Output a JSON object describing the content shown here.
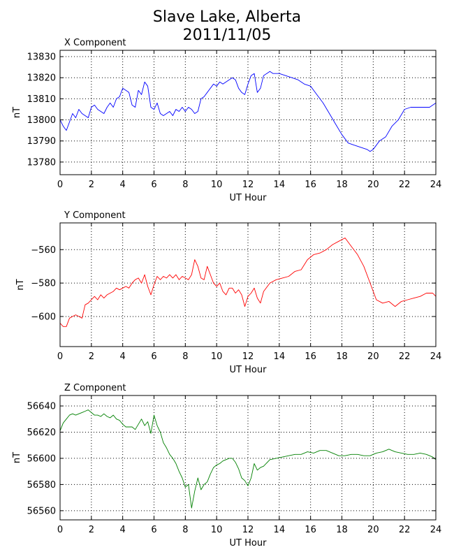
{
  "title": [
    "Slave Lake, Alberta",
    "2011/11/05"
  ],
  "colors": {
    "x": "#0000ff",
    "y": "#ff0000",
    "z": "#008000"
  },
  "chart_data": [
    {
      "type": "line",
      "title": "X Component",
      "xlabel": "UT Hour",
      "ylabel": "nT",
      "xlim": [
        0,
        24
      ],
      "ylim": [
        13774,
        13833
      ],
      "xticks": [
        0,
        2,
        4,
        6,
        8,
        10,
        12,
        14,
        16,
        18,
        20,
        22,
        24
      ],
      "yticks": [
        13780,
        13790,
        13800,
        13810,
        13820,
        13830
      ],
      "grid": true,
      "color": "#0000ff",
      "x": [
        0,
        0.2,
        0.4,
        0.6,
        0.8,
        1.0,
        1.2,
        1.4,
        1.6,
        1.8,
        2.0,
        2.2,
        2.4,
        2.6,
        2.8,
        3.0,
        3.2,
        3.4,
        3.6,
        3.8,
        4.0,
        4.2,
        4.4,
        4.6,
        4.8,
        5.0,
        5.2,
        5.4,
        5.6,
        5.8,
        6.0,
        6.2,
        6.4,
        6.6,
        6.8,
        7.0,
        7.2,
        7.4,
        7.6,
        7.8,
        8.0,
        8.2,
        8.4,
        8.6,
        8.8,
        9.0,
        9.2,
        9.4,
        9.6,
        9.8,
        10.0,
        10.2,
        10.4,
        10.6,
        10.8,
        11.0,
        11.2,
        11.4,
        11.6,
        11.8,
        12.0,
        12.2,
        12.4,
        12.6,
        12.8,
        13.0,
        13.2,
        13.4,
        13.6,
        13.8,
        14.0,
        14.4,
        14.8,
        15.2,
        15.6,
        16.0,
        16.4,
        16.8,
        17.2,
        17.6,
        18.0,
        18.4,
        18.8,
        19.2,
        19.6,
        19.8,
        20.0,
        20.2,
        20.4,
        20.8,
        21.2,
        21.6,
        22.0,
        22.4,
        22.8,
        23.2,
        23.6,
        24.0
      ],
      "y": [
        13800,
        13797,
        13795,
        13799,
        13803,
        13801,
        13805,
        13803,
        13802,
        13801,
        13806,
        13807,
        13805,
        13804,
        13803,
        13806,
        13808,
        13806,
        13810,
        13811,
        13815,
        13814,
        13813,
        13807,
        13806,
        13814,
        13812,
        13818,
        13816,
        13806,
        13805,
        13808,
        13803,
        13802,
        13803,
        13804,
        13802,
        13805,
        13804,
        13806,
        13804,
        13806,
        13805,
        13803,
        13804,
        13810,
        13811,
        13813,
        13815,
        13817,
        13816,
        13818,
        13817,
        13818,
        13819,
        13820,
        13819,
        13815,
        13813,
        13812,
        13817,
        13821,
        13822,
        13813,
        13815,
        13821,
        13822,
        13823,
        13822,
        13822,
        13822,
        13821,
        13820,
        13819,
        13817,
        13816,
        13812,
        13808,
        13803,
        13798,
        13793,
        13789,
        13788,
        13787,
        13786,
        13785,
        13786,
        13788,
        13790,
        13792,
        13797,
        13800,
        13805,
        13806,
        13806,
        13806,
        13806,
        13808
      ]
    },
    {
      "type": "line",
      "title": "Y Component",
      "xlabel": "UT Hour",
      "ylabel": "nT",
      "xlim": [
        0,
        24
      ],
      "ylim": [
        -618,
        -544
      ],
      "xticks": [
        0,
        2,
        4,
        6,
        8,
        10,
        12,
        14,
        16,
        18,
        20,
        22,
        24
      ],
      "yticks": [
        -600,
        -580,
        -560
      ],
      "grid": true,
      "color": "#ff0000",
      "x": [
        0,
        0.2,
        0.4,
        0.6,
        0.8,
        1.0,
        1.2,
        1.4,
        1.6,
        1.8,
        2.0,
        2.2,
        2.4,
        2.6,
        2.8,
        3.0,
        3.2,
        3.4,
        3.6,
        3.8,
        4.0,
        4.2,
        4.4,
        4.6,
        4.8,
        5.0,
        5.2,
        5.4,
        5.6,
        5.8,
        6.0,
        6.2,
        6.4,
        6.6,
        6.8,
        7.0,
        7.2,
        7.4,
        7.6,
        7.8,
        8.0,
        8.2,
        8.4,
        8.6,
        8.8,
        9.0,
        9.2,
        9.4,
        9.6,
        9.8,
        10.0,
        10.2,
        10.4,
        10.6,
        10.8,
        11.0,
        11.2,
        11.4,
        11.6,
        11.8,
        12.0,
        12.2,
        12.4,
        12.6,
        12.8,
        13.0,
        13.4,
        13.8,
        14.2,
        14.6,
        15.0,
        15.4,
        15.8,
        16.2,
        16.6,
        17.0,
        17.4,
        17.8,
        18.2,
        18.6,
        19.0,
        19.4,
        19.8,
        20.2,
        20.6,
        21.0,
        21.4,
        21.8,
        22.2,
        22.6,
        23.0,
        23.4,
        23.8,
        24.0
      ],
      "y": [
        -604,
        -606,
        -606,
        -601,
        -600,
        -599,
        -600,
        -601,
        -593,
        -592,
        -590,
        -588,
        -590,
        -587,
        -589,
        -587,
        -586,
        -585,
        -583,
        -584,
        -583,
        -582,
        -583,
        -580,
        -578,
        -577,
        -580,
        -575,
        -582,
        -587,
        -581,
        -576,
        -578,
        -576,
        -577,
        -575,
        -577,
        -575,
        -578,
        -576,
        -577,
        -578,
        -575,
        -566,
        -570,
        -577,
        -578,
        -570,
        -575,
        -580,
        -582,
        -580,
        -585,
        -587,
        -583,
        -583,
        -586,
        -584,
        -587,
        -594,
        -588,
        -586,
        -583,
        -589,
        -592,
        -585,
        -580,
        -578,
        -577,
        -576,
        -573,
        -572,
        -566,
        -563,
        -562,
        -560,
        -557,
        -555,
        -553,
        -558,
        -563,
        -570,
        -580,
        -590,
        -592,
        -591,
        -594,
        -591,
        -590,
        -589,
        -588,
        -586,
        -586,
        -588
      ]
    },
    {
      "type": "line",
      "title": "Z Component",
      "xlabel": "UT Hour",
      "ylabel": "nT",
      "xlim": [
        0,
        24
      ],
      "ylim": [
        56553,
        56648
      ],
      "xticks": [
        0,
        2,
        4,
        6,
        8,
        10,
        12,
        14,
        16,
        18,
        20,
        22,
        24
      ],
      "yticks": [
        56560,
        56580,
        56600,
        56620,
        56640
      ],
      "grid": true,
      "color": "#008000",
      "x": [
        0,
        0.2,
        0.4,
        0.6,
        0.8,
        1.0,
        1.2,
        1.4,
        1.6,
        1.8,
        2.0,
        2.2,
        2.4,
        2.6,
        2.8,
        3.0,
        3.2,
        3.4,
        3.6,
        3.8,
        4.0,
        4.2,
        4.4,
        4.6,
        4.8,
        5.0,
        5.2,
        5.4,
        5.6,
        5.8,
        6.0,
        6.2,
        6.4,
        6.6,
        6.8,
        7.0,
        7.2,
        7.4,
        7.6,
        7.8,
        8.0,
        8.2,
        8.4,
        8.6,
        8.8,
        9.0,
        9.2,
        9.4,
        9.6,
        9.8,
        10.0,
        10.2,
        10.4,
        10.6,
        10.8,
        11.0,
        11.2,
        11.4,
        11.6,
        11.8,
        12.0,
        12.2,
        12.4,
        12.6,
        12.8,
        13.0,
        13.4,
        13.8,
        14.2,
        14.6,
        15.0,
        15.4,
        15.8,
        16.2,
        16.6,
        17.0,
        17.4,
        17.8,
        18.2,
        18.6,
        19.0,
        19.4,
        19.8,
        20.2,
        20.6,
        21.0,
        21.4,
        21.8,
        22.2,
        22.6,
        23.0,
        23.4,
        23.8,
        24.0
      ],
      "y": [
        56621,
        56627,
        56630,
        56633,
        56634,
        56633,
        56634,
        56635,
        56636,
        56637,
        56635,
        56633,
        56633,
        56632,
        56634,
        56632,
        56631,
        56633,
        56630,
        56629,
        56626,
        56624,
        56624,
        56624,
        56622,
        56626,
        56630,
        56625,
        56628,
        56619,
        56633,
        56625,
        56620,
        56612,
        56608,
        56603,
        56600,
        56596,
        56590,
        56585,
        56578,
        56580,
        56562,
        56575,
        56585,
        56576,
        56580,
        56582,
        56588,
        56593,
        56595,
        56596,
        56598,
        56599,
        56600,
        56600,
        56597,
        56592,
        56585,
        56583,
        56579,
        56585,
        56596,
        56591,
        56593,
        56594,
        56599,
        56600,
        56601,
        56602,
        56603,
        56603,
        56605,
        56604,
        56606,
        56606,
        56604,
        56602,
        56602,
        56603,
        56603,
        56602,
        56602,
        56604,
        56605,
        56607,
        56605,
        56604,
        56603,
        56603,
        56604,
        56603,
        56601,
        56599
      ]
    }
  ]
}
